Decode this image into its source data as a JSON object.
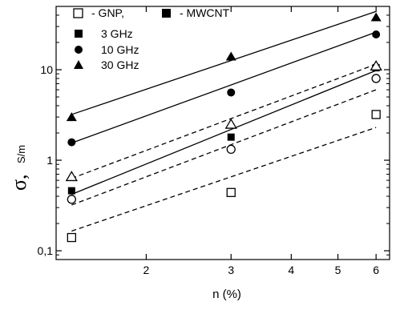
{
  "chart_data": {
    "type": "scatter",
    "xscale": "log",
    "yscale": "log",
    "xlim": [
      1.3,
      6.4
    ],
    "ylim": [
      0.08,
      50
    ],
    "xlabel": "n (%)",
    "ylabel_symbol": "σ,",
    "ylabel_unit": "S/m",
    "x_ticks": [
      {
        "value": 2,
        "label": "2"
      },
      {
        "value": 3,
        "label": "3"
      },
      {
        "value": 4,
        "label": "4"
      },
      {
        "value": 5,
        "label": "5"
      },
      {
        "value": 6,
        "label": "6"
      }
    ],
    "y_ticks": [
      {
        "value": 0.1,
        "label": "0,1"
      },
      {
        "value": 1,
        "label": "1"
      },
      {
        "value": 10,
        "label": "10"
      }
    ],
    "legend": {
      "placement": "top-left",
      "material_entries": [
        {
          "marker": "open-square",
          "label": "- GNP,"
        },
        {
          "marker": "filled-square",
          "label": "- MWCNT"
        }
      ],
      "frequency_entries": [
        {
          "marker": "square",
          "label": "3 GHz"
        },
        {
          "marker": "circle",
          "label": "10 GHz"
        },
        {
          "marker": "triangle",
          "label": "30 GHz"
        }
      ]
    },
    "series": [
      {
        "material": "MWCNT",
        "frequency": "3 GHz",
        "marker": "square",
        "filled": true,
        "x": [
          1.4,
          3,
          6
        ],
        "y": [
          0.46,
          1.8,
          10.5
        ]
      },
      {
        "material": "MWCNT",
        "frequency": "10 GHz",
        "marker": "circle",
        "filled": true,
        "x": [
          1.4,
          3,
          6
        ],
        "y": [
          1.58,
          5.6,
          24.5
        ]
      },
      {
        "material": "MWCNT",
        "frequency": "30 GHz",
        "marker": "triangle",
        "filled": true,
        "x": [
          1.4,
          3,
          6
        ],
        "y": [
          3.0,
          14,
          38
        ]
      },
      {
        "material": "GNP",
        "frequency": "3 GHz",
        "marker": "square",
        "filled": false,
        "x": [
          1.4,
          3,
          6
        ],
        "y": [
          0.14,
          0.44,
          3.2
        ]
      },
      {
        "material": "GNP",
        "frequency": "10 GHz",
        "marker": "circle",
        "filled": false,
        "x": [
          1.4,
          3,
          6
        ],
        "y": [
          0.37,
          1.32,
          8.0
        ]
      },
      {
        "material": "GNP",
        "frequency": "30 GHz",
        "marker": "triangle",
        "filled": false,
        "x": [
          1.4,
          3,
          6
        ],
        "y": [
          0.66,
          2.5,
          11.0
        ]
      }
    ],
    "fit_lines": [
      {
        "material": "MWCNT",
        "frequency": "3 GHz",
        "style": "solid",
        "x": [
          1.4,
          6
        ],
        "y": [
          0.42,
          9.8
        ]
      },
      {
        "material": "MWCNT",
        "frequency": "10 GHz",
        "style": "solid",
        "x": [
          1.4,
          6
        ],
        "y": [
          1.55,
          26
        ]
      },
      {
        "material": "MWCNT",
        "frequency": "30 GHz",
        "style": "solid",
        "x": [
          1.4,
          6
        ],
        "y": [
          3.2,
          44
        ]
      },
      {
        "material": "GNP",
        "frequency": "3 GHz",
        "style": "dashed",
        "x": [
          1.4,
          6
        ],
        "y": [
          0.165,
          2.3
        ]
      },
      {
        "material": "GNP",
        "frequency": "10 GHz",
        "style": "dashed",
        "x": [
          1.4,
          6
        ],
        "y": [
          0.32,
          6.0
        ]
      },
      {
        "material": "GNP",
        "frequency": "30 GHz",
        "style": "dashed",
        "x": [
          1.4,
          6
        ],
        "y": [
          0.63,
          11.5
        ]
      }
    ]
  }
}
